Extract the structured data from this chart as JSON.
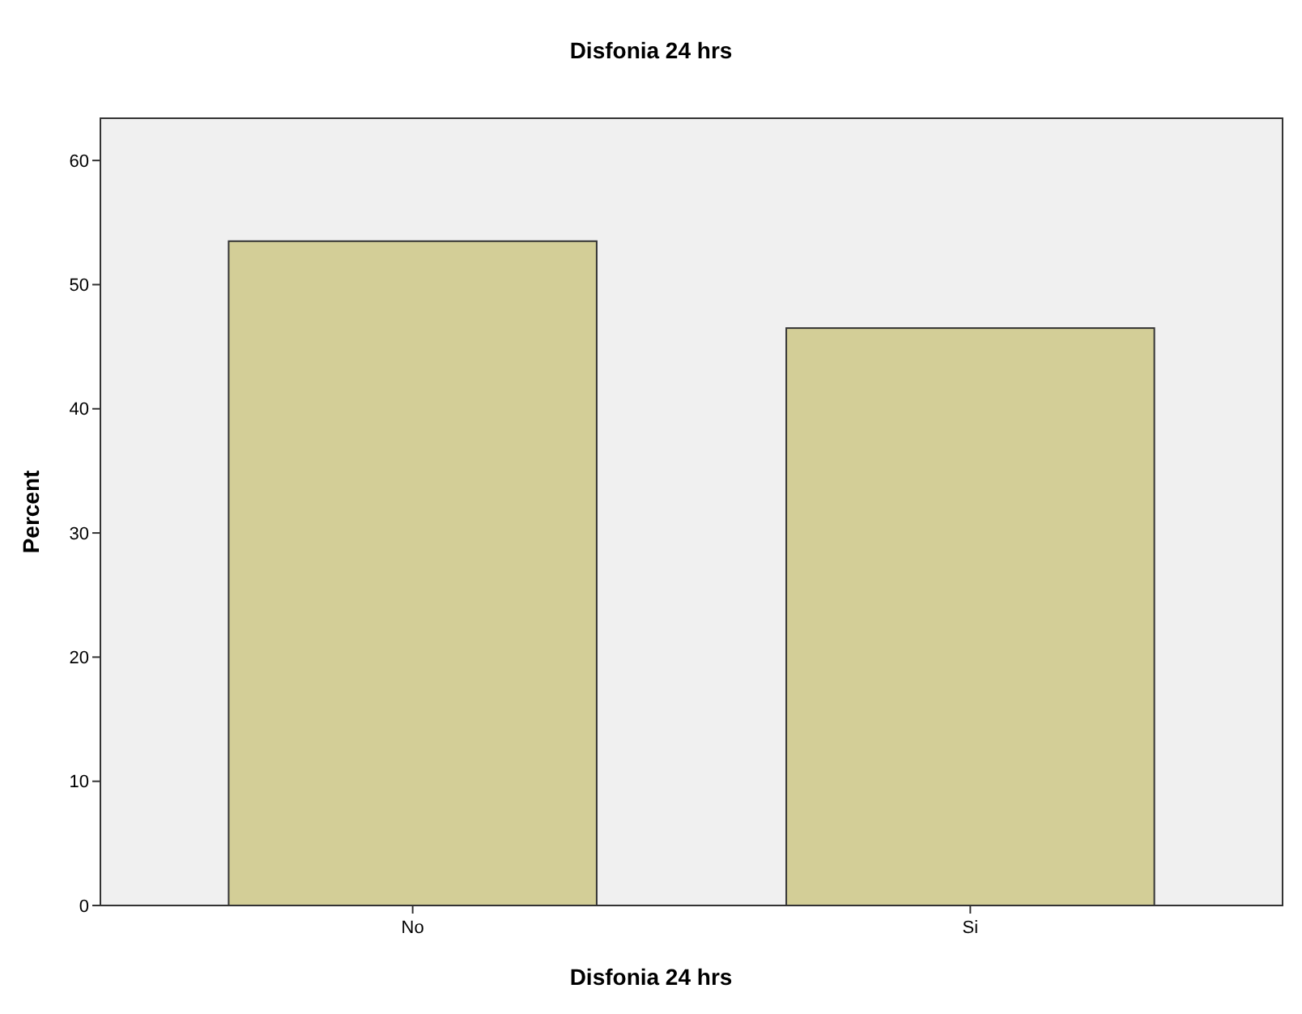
{
  "chart_data": {
    "type": "bar",
    "title": "Disfonia 24 hrs",
    "xlabel": "Disfonia 24 hrs",
    "ylabel": "Percent",
    "categories": [
      "No",
      "Si"
    ],
    "values": [
      53.5,
      46.5
    ],
    "color": "#d3ce97",
    "ylim": [
      0,
      63.4
    ],
    "yticks": [
      0,
      10,
      20,
      30,
      40,
      50,
      60
    ],
    "grid": false
  }
}
